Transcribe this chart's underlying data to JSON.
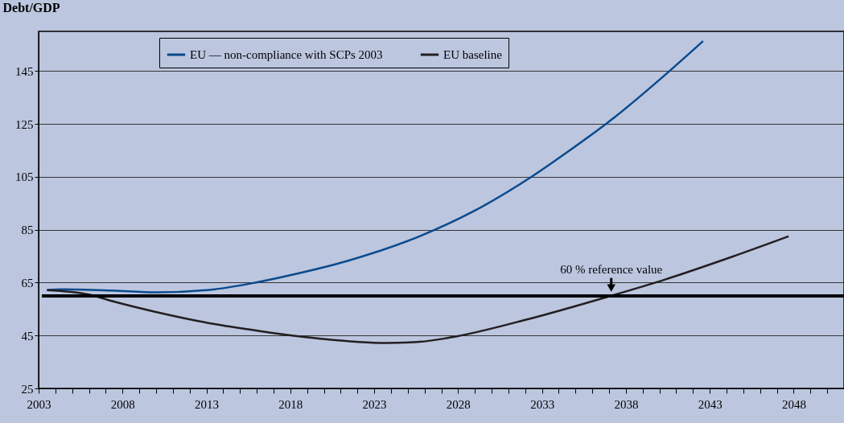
{
  "chart_data": {
    "type": "line",
    "ylabel": "Debt/GDP",
    "xlim": [
      2003,
      2051
    ],
    "ylim": [
      25,
      160
    ],
    "xticks": [
      2003,
      {
        "value": 2004,
        "label": null
      },
      {
        "value": 2005,
        "label": null
      },
      {
        "value": 2006,
        "label": null
      },
      {
        "value": 2007,
        "label": null
      },
      2008,
      {
        "value": 2009,
        "label": null
      },
      {
        "value": 2010,
        "label": null
      },
      {
        "value": 2011,
        "label": null
      },
      {
        "value": 2012,
        "label": null
      },
      2013,
      {
        "value": 2014,
        "label": null
      },
      {
        "value": 2015,
        "label": null
      },
      {
        "value": 2016,
        "label": null
      },
      {
        "value": 2017,
        "label": null
      },
      2018,
      {
        "value": 2019,
        "label": null
      },
      {
        "value": 2020,
        "label": null
      },
      {
        "value": 2021,
        "label": null
      },
      {
        "value": 2022,
        "label": null
      },
      2023,
      {
        "value": 2024,
        "label": null
      },
      {
        "value": 2025,
        "label": null
      },
      {
        "value": 2026,
        "label": null
      },
      {
        "value": 2027,
        "label": null
      },
      2028,
      {
        "value": 2029,
        "label": null
      },
      {
        "value": 2030,
        "label": null
      },
      {
        "value": 2031,
        "label": null
      },
      {
        "value": 2032,
        "label": null
      },
      2033,
      {
        "value": 2034,
        "label": null
      },
      {
        "value": 2035,
        "label": null
      },
      {
        "value": 2036,
        "label": null
      },
      {
        "value": 2037,
        "label": null
      },
      2038,
      {
        "value": 2039,
        "label": null
      },
      {
        "value": 2040,
        "label": null
      },
      {
        "value": 2041,
        "label": null
      },
      {
        "value": 2042,
        "label": null
      },
      2043,
      {
        "value": 2044,
        "label": null
      },
      {
        "value": 2045,
        "label": null
      },
      {
        "value": 2046,
        "label": null
      },
      {
        "value": 2047,
        "label": null
      },
      2048,
      {
        "value": 2049,
        "label": null
      },
      {
        "value": 2050,
        "label": null
      }
    ],
    "yticks": [
      25,
      45,
      65,
      85,
      105,
      125,
      145
    ],
    "grid": "y",
    "legend": "top",
    "line_style": "solid",
    "marker": "none",
    "series": [
      {
        "name": "EU — non-compliance with SCPs 2003",
        "color": "#0a4a8c",
        "x": [
          2003.5,
          2004.4,
          2007.4,
          2010,
          2013.5,
          2015.9,
          2018.2,
          2021.4,
          2025.7,
          2028.9,
          2032.4,
          2034.7,
          2036.9,
          2040.6,
          2042.6
        ],
        "values": [
          62.2,
          62.5,
          62.0,
          61.3,
          62.5,
          65.0,
          68.1,
          73.2,
          82.5,
          91.9,
          105.1,
          115.2,
          125.4,
          145.0,
          156.3
        ]
      },
      {
        "name": "EU baseline",
        "color": "#231f20",
        "x": [
          2003.5,
          2006.0,
          2007.4,
          2010,
          2013.5,
          2016.6,
          2019.8,
          2023.7,
          2025.7,
          2027.5,
          2032.3,
          2037.1,
          2040.3,
          2044.3,
          2047.7
        ],
        "values": [
          62.2,
          60.5,
          58.0,
          53.9,
          49.3,
          46.3,
          43.8,
          42.2,
          42.6,
          44.2,
          51.4,
          60.0,
          66.1,
          74.7,
          82.5
        ]
      }
    ],
    "ref_lines": [
      {
        "axis": "y",
        "value": 60,
        "label": "60 % reference value",
        "color": "#000000",
        "line_style": "solid"
      }
    ]
  }
}
